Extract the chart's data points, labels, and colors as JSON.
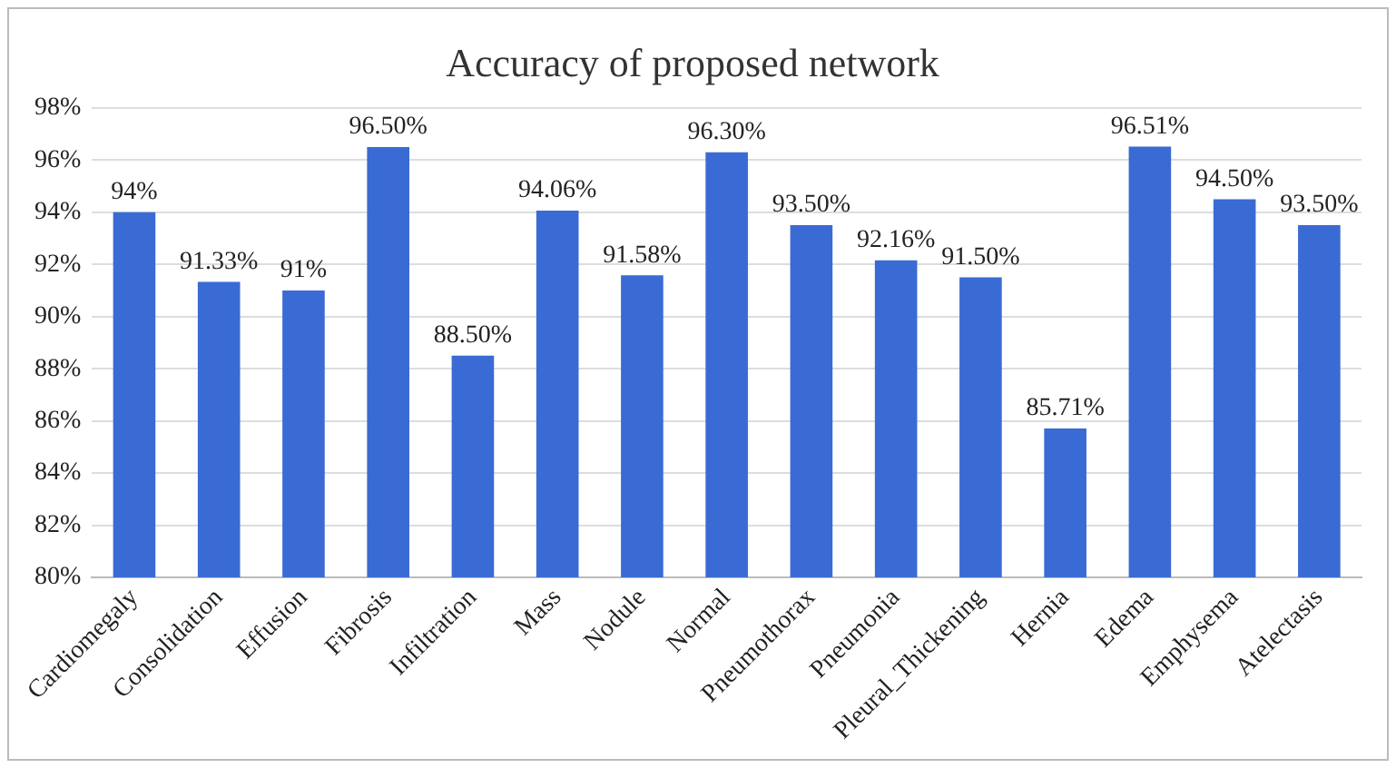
{
  "chart_data": {
    "type": "bar",
    "title": "Accuracy of proposed network",
    "categories": [
      "Cardiomegaly",
      "Consolidation",
      "Effusion",
      "Fibrosis",
      "Infiltration",
      "Mass",
      "Nodule",
      "Normal",
      "Pneumothorax",
      "Pneumonia",
      "Pleural_Thickening",
      "Hernia",
      "Edema",
      "Emphysema",
      "Atelectasis"
    ],
    "values": [
      94,
      91.33,
      91,
      96.5,
      88.5,
      94.06,
      91.58,
      96.3,
      93.5,
      92.16,
      91.5,
      85.71,
      96.51,
      94.5,
      93.5
    ],
    "value_labels": [
      "94%",
      "91.33%",
      "91%",
      "96.50%",
      "88.50%",
      "94.06%",
      "91.58%",
      "96.30%",
      "93.50%",
      "92.16%",
      "91.50%",
      "85.71%",
      "96.51%",
      "94.50%",
      "93.50%"
    ],
    "color": "#3a6bd4",
    "ylim": [
      80,
      98
    ],
    "yticks": [
      {
        "value": 80,
        "label": "80%"
      },
      {
        "value": 82,
        "label": "82%"
      },
      {
        "value": 84,
        "label": "84%"
      },
      {
        "value": 86,
        "label": "86%"
      },
      {
        "value": 88,
        "label": "88%"
      },
      {
        "value": 90,
        "label": "90%"
      },
      {
        "value": 92,
        "label": "92%"
      },
      {
        "value": 94,
        "label": "94%"
      },
      {
        "value": 96,
        "label": "96%"
      },
      {
        "value": 98,
        "label": "98%"
      }
    ],
    "grid": "y",
    "legend": false
  }
}
